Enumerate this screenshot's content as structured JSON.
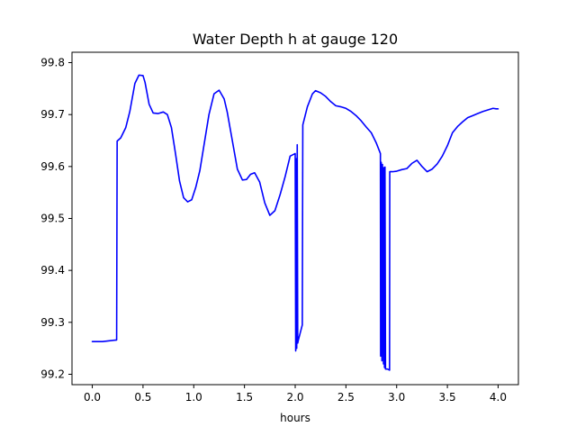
{
  "chart_data": {
    "type": "line",
    "title": "Water Depth h at gauge 120",
    "xlabel": "hours",
    "ylabel": "",
    "xlim": [
      -0.2,
      4.2
    ],
    "ylim": [
      99.18,
      99.82
    ],
    "xticks": [
      0.0,
      0.5,
      1.0,
      1.5,
      2.0,
      2.5,
      3.0,
      3.5,
      4.0
    ],
    "xtick_labels": [
      "0.0",
      "0.5",
      "1.0",
      "1.5",
      "2.0",
      "2.5",
      "3.0",
      "3.5",
      "4.0"
    ],
    "yticks": [
      99.2,
      99.3,
      99.4,
      99.5,
      99.6,
      99.7,
      99.8
    ],
    "ytick_labels": [
      "99.2",
      "99.3",
      "99.4",
      "99.5",
      "99.6",
      "99.7",
      "99.8"
    ],
    "grid": false,
    "series": [
      {
        "color": "#0000ff",
        "x": [
          0.0,
          0.1,
          0.24,
          0.245,
          0.28,
          0.33,
          0.37,
          0.42,
          0.46,
          0.5,
          0.52,
          0.56,
          0.6,
          0.65,
          0.7,
          0.74,
          0.78,
          0.82,
          0.86,
          0.9,
          0.94,
          0.98,
          1.02,
          1.06,
          1.1,
          1.15,
          1.2,
          1.25,
          1.3,
          1.33,
          1.38,
          1.43,
          1.48,
          1.52,
          1.56,
          1.6,
          1.65,
          1.7,
          1.75,
          1.8,
          1.85,
          1.9,
          1.95,
          2.0,
          2.005,
          2.01,
          2.015,
          2.02,
          2.025,
          2.03,
          2.05,
          2.07,
          2.075,
          2.12,
          2.17,
          2.2,
          2.25,
          2.3,
          2.35,
          2.4,
          2.45,
          2.5,
          2.55,
          2.6,
          2.65,
          2.7,
          2.75,
          2.8,
          2.84,
          2.842,
          2.848,
          2.855,
          2.86,
          2.87,
          2.872,
          2.88,
          2.885,
          2.89,
          2.91,
          2.93,
          2.932,
          2.96,
          3.0,
          3.05,
          3.1,
          3.15,
          3.2,
          3.25,
          3.3,
          3.35,
          3.4,
          3.45,
          3.5,
          3.55,
          3.6,
          3.65,
          3.7,
          3.75,
          3.8,
          3.85,
          3.9,
          3.95,
          3.98,
          4.0
        ],
        "y": [
          99.263,
          99.263,
          99.266,
          99.649,
          99.655,
          99.675,
          99.706,
          99.76,
          99.776,
          99.775,
          99.762,
          99.72,
          99.703,
          99.702,
          99.705,
          99.7,
          99.675,
          99.625,
          99.572,
          99.54,
          99.532,
          99.536,
          99.56,
          99.592,
          99.64,
          99.7,
          99.74,
          99.747,
          99.73,
          99.705,
          99.65,
          99.595,
          99.574,
          99.575,
          99.585,
          99.588,
          99.57,
          99.53,
          99.506,
          99.515,
          99.545,
          99.58,
          99.62,
          99.625,
          99.245,
          99.615,
          99.25,
          99.642,
          99.26,
          99.265,
          99.28,
          99.295,
          99.68,
          99.715,
          99.74,
          99.746,
          99.742,
          99.735,
          99.725,
          99.717,
          99.715,
          99.712,
          99.706,
          99.698,
          99.688,
          99.676,
          99.665,
          99.645,
          99.625,
          99.235,
          99.608,
          99.226,
          99.604,
          99.22,
          99.598,
          99.213,
          99.599,
          99.21,
          99.21,
          99.208,
          99.59,
          99.59,
          99.591,
          99.594,
          99.596,
          99.606,
          99.612,
          99.6,
          99.59,
          99.595,
          99.605,
          99.62,
          99.64,
          99.665,
          99.677,
          99.686,
          99.694,
          99.698,
          99.702,
          99.706,
          99.709,
          99.712,
          99.711,
          99.711
        ]
      }
    ]
  }
}
